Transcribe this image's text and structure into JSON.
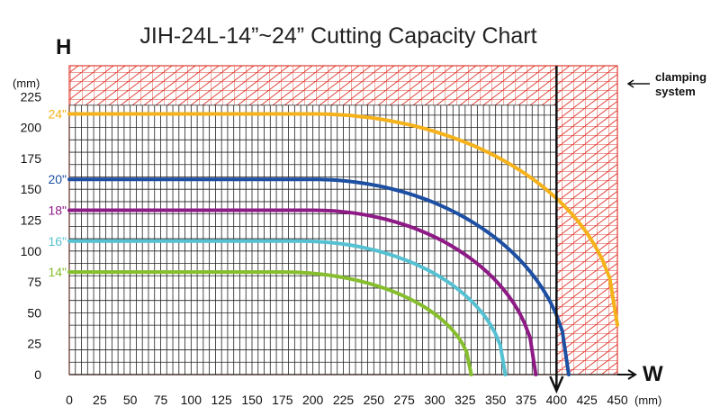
{
  "chart_data": {
    "type": "line",
    "title": "JIH-24L-14”~24”  Cutting Capacity Chart",
    "xlabel": "W",
    "ylabel": "H",
    "x_unit": "(mm)",
    "y_unit": "(mm)",
    "xlim": [
      0,
      450
    ],
    "ylim": [
      0,
      250
    ],
    "x_ticks": [
      "0",
      "25",
      "50",
      "75",
      "100",
      "125",
      "150",
      "175",
      "200",
      "225",
      "250",
      "275",
      "300",
      "325",
      "350",
      "375",
      "400",
      "425",
      "450"
    ],
    "y_ticks": [
      "0",
      "25",
      "50",
      "75",
      "100",
      "125",
      "150",
      "175",
      "200",
      "225"
    ],
    "grid": true,
    "max_width_line": 400,
    "clamping_zone": {
      "label_line1": "clamping",
      "label_line2": "system",
      "h_from": 218,
      "w_from": 400
    },
    "series": [
      {
        "name": "24\"",
        "color": "#f6b21a",
        "flat_h": 211,
        "flat_to_w": 200,
        "end_w": 450,
        "end_h": 40
      },
      {
        "name": "20\"",
        "color": "#1d4fa2",
        "flat_h": 158,
        "flat_to_w": 200,
        "end_w": 410,
        "end_h": 0
      },
      {
        "name": "18\"",
        "color": "#8e1a86",
        "flat_h": 133,
        "flat_to_w": 200,
        "end_w": 383,
        "end_h": 0
      },
      {
        "name": "16\"",
        "color": "#56c1d2",
        "flat_h": 108,
        "flat_to_w": 190,
        "end_w": 358,
        "end_h": 0
      },
      {
        "name": "14\"",
        "color": "#86be2e",
        "flat_h": 83,
        "flat_to_w": 175,
        "end_w": 330,
        "end_h": 0
      }
    ]
  }
}
